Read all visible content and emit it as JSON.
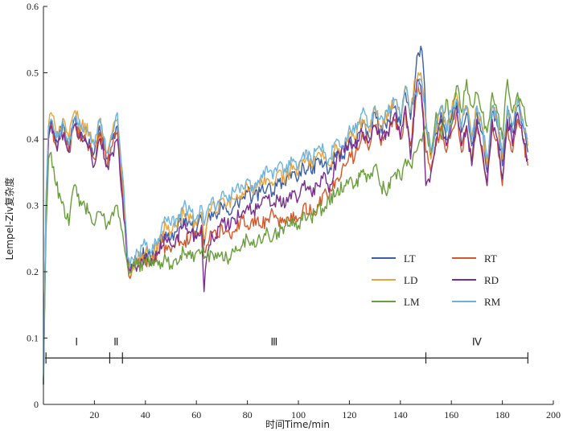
{
  "chart_data": {
    "type": "line",
    "title": "",
    "xlabel": "时间Time/min",
    "ylabel": "Lempel-Ziv复杂度",
    "xlim": [
      0,
      200
    ],
    "ylim": [
      0,
      0.6
    ],
    "xticks": [
      20,
      40,
      60,
      80,
      100,
      120,
      140,
      160,
      180,
      200
    ],
    "yticks": [
      0,
      0.1,
      0.2,
      0.3,
      0.4,
      0.5,
      0.6
    ],
    "grid": false,
    "legend_position": "right",
    "x": [
      0,
      1,
      2,
      3,
      5,
      8,
      10,
      12,
      15,
      18,
      20,
      22,
      25,
      27,
      29,
      30,
      31,
      32,
      33,
      34,
      35,
      37,
      40,
      42,
      45,
      48,
      50,
      52,
      55,
      58,
      60,
      62,
      63,
      64,
      66,
      68,
      70,
      72,
      75,
      78,
      80,
      82,
      85,
      88,
      90,
      92,
      95,
      98,
      100,
      102,
      105,
      108,
      110,
      112,
      115,
      118,
      120,
      122,
      125,
      128,
      130,
      132,
      135,
      138,
      140,
      142,
      144,
      146,
      147,
      148,
      149,
      150,
      152,
      154,
      156,
      158,
      160,
      162,
      164,
      166,
      168,
      170,
      172,
      174,
      176,
      178,
      180,
      182,
      184,
      186,
      188,
      190
    ],
    "series": [
      {
        "name": "LT",
        "color": "#3a5ea8",
        "values": [
          0.03,
          0.3,
          0.41,
          0.43,
          0.4,
          0.42,
          0.39,
          0.43,
          0.41,
          0.4,
          0.38,
          0.42,
          0.37,
          0.4,
          0.42,
          0.37,
          0.33,
          0.28,
          0.22,
          0.2,
          0.21,
          0.22,
          0.23,
          0.22,
          0.24,
          0.26,
          0.25,
          0.26,
          0.28,
          0.27,
          0.26,
          0.28,
          0.24,
          0.27,
          0.29,
          0.28,
          0.3,
          0.29,
          0.3,
          0.31,
          0.32,
          0.31,
          0.32,
          0.33,
          0.32,
          0.34,
          0.33,
          0.35,
          0.34,
          0.36,
          0.35,
          0.37,
          0.36,
          0.35,
          0.38,
          0.37,
          0.4,
          0.39,
          0.42,
          0.4,
          0.44,
          0.41,
          0.43,
          0.45,
          0.42,
          0.47,
          0.43,
          0.5,
          0.53,
          0.54,
          0.51,
          0.43,
          0.37,
          0.41,
          0.44,
          0.4,
          0.43,
          0.46,
          0.41,
          0.44,
          0.39,
          0.44,
          0.41,
          0.35,
          0.44,
          0.42,
          0.36,
          0.44,
          0.41,
          0.45,
          0.42,
          0.38
        ]
      },
      {
        "name": "RT",
        "color": "#d4572a",
        "values": [
          0.03,
          0.3,
          0.4,
          0.42,
          0.39,
          0.41,
          0.38,
          0.42,
          0.4,
          0.39,
          0.37,
          0.41,
          0.36,
          0.39,
          0.41,
          0.36,
          0.32,
          0.27,
          0.21,
          0.19,
          0.21,
          0.22,
          0.22,
          0.21,
          0.23,
          0.24,
          0.23,
          0.25,
          0.24,
          0.26,
          0.25,
          0.27,
          0.23,
          0.24,
          0.26,
          0.25,
          0.27,
          0.26,
          0.26,
          0.28,
          0.27,
          0.28,
          0.27,
          0.28,
          0.29,
          0.28,
          0.27,
          0.29,
          0.28,
          0.3,
          0.29,
          0.3,
          0.32,
          0.31,
          0.34,
          0.36,
          0.38,
          0.37,
          0.41,
          0.39,
          0.42,
          0.4,
          0.41,
          0.43,
          0.4,
          0.44,
          0.39,
          0.46,
          0.48,
          0.47,
          0.44,
          0.38,
          0.35,
          0.39,
          0.42,
          0.38,
          0.41,
          0.44,
          0.38,
          0.42,
          0.36,
          0.42,
          0.38,
          0.33,
          0.42,
          0.4,
          0.33,
          0.42,
          0.38,
          0.43,
          0.4,
          0.36
        ]
      },
      {
        "name": "LD",
        "color": "#e8a33a",
        "values": [
          0.03,
          0.31,
          0.42,
          0.44,
          0.41,
          0.43,
          0.4,
          0.44,
          0.42,
          0.41,
          0.39,
          0.43,
          0.38,
          0.41,
          0.43,
          0.38,
          0.34,
          0.28,
          0.22,
          0.2,
          0.21,
          0.22,
          0.23,
          0.22,
          0.24,
          0.27,
          0.26,
          0.27,
          0.29,
          0.28,
          0.27,
          0.29,
          0.25,
          0.27,
          0.3,
          0.29,
          0.31,
          0.3,
          0.31,
          0.32,
          0.33,
          0.32,
          0.33,
          0.34,
          0.33,
          0.35,
          0.34,
          0.36,
          0.35,
          0.37,
          0.36,
          0.38,
          0.37,
          0.36,
          0.39,
          0.38,
          0.41,
          0.4,
          0.43,
          0.41,
          0.45,
          0.42,
          0.44,
          0.46,
          0.43,
          0.48,
          0.44,
          0.49,
          0.5,
          0.5,
          0.47,
          0.42,
          0.37,
          0.41,
          0.45,
          0.41,
          0.44,
          0.47,
          0.42,
          0.45,
          0.4,
          0.45,
          0.42,
          0.36,
          0.45,
          0.43,
          0.37,
          0.45,
          0.42,
          0.46,
          0.43,
          0.39
        ]
      },
      {
        "name": "RD",
        "color": "#7b2d8e",
        "values": [
          0.03,
          0.3,
          0.4,
          0.42,
          0.39,
          0.41,
          0.38,
          0.42,
          0.4,
          0.39,
          0.36,
          0.4,
          0.36,
          0.38,
          0.4,
          0.35,
          0.31,
          0.27,
          0.21,
          0.2,
          0.21,
          0.21,
          0.22,
          0.21,
          0.23,
          0.25,
          0.24,
          0.25,
          0.27,
          0.26,
          0.25,
          0.27,
          0.17,
          0.22,
          0.26,
          0.25,
          0.28,
          0.27,
          0.28,
          0.29,
          0.3,
          0.29,
          0.3,
          0.31,
          0.3,
          0.31,
          0.3,
          0.32,
          0.31,
          0.33,
          0.32,
          0.33,
          0.35,
          0.32,
          0.37,
          0.38,
          0.4,
          0.39,
          0.41,
          0.4,
          0.42,
          0.4,
          0.41,
          0.44,
          0.4,
          0.45,
          0.37,
          0.47,
          0.49,
          0.48,
          0.43,
          0.33,
          0.35,
          0.4,
          0.43,
          0.39,
          0.42,
          0.45,
          0.39,
          0.42,
          0.36,
          0.43,
          0.39,
          0.33,
          0.43,
          0.4,
          0.34,
          0.43,
          0.39,
          0.44,
          0.4,
          0.37
        ]
      },
      {
        "name": "LM",
        "color": "#6a9e3c",
        "values": [
          0.03,
          0.26,
          0.37,
          0.38,
          0.33,
          0.3,
          0.27,
          0.33,
          0.3,
          0.29,
          0.27,
          0.29,
          0.27,
          0.29,
          0.3,
          0.28,
          0.26,
          0.23,
          0.21,
          0.2,
          0.21,
          0.21,
          0.21,
          0.22,
          0.21,
          0.22,
          0.21,
          0.22,
          0.23,
          0.22,
          0.23,
          0.23,
          0.22,
          0.22,
          0.23,
          0.22,
          0.23,
          0.22,
          0.23,
          0.24,
          0.25,
          0.24,
          0.25,
          0.26,
          0.25,
          0.26,
          0.27,
          0.28,
          0.27,
          0.29,
          0.28,
          0.3,
          0.29,
          0.31,
          0.32,
          0.33,
          0.34,
          0.33,
          0.35,
          0.34,
          0.36,
          0.33,
          0.32,
          0.35,
          0.34,
          0.37,
          0.36,
          0.38,
          0.39,
          0.4,
          0.41,
          0.42,
          0.38,
          0.44,
          0.4,
          0.46,
          0.42,
          0.48,
          0.44,
          0.49,
          0.45,
          0.47,
          0.44,
          0.41,
          0.47,
          0.44,
          0.4,
          0.49,
          0.44,
          0.47,
          0.45,
          0.42
        ]
      },
      {
        "name": "RM",
        "color": "#6cb4de",
        "values": [
          0.03,
          0.31,
          0.42,
          0.43,
          0.4,
          0.42,
          0.39,
          0.43,
          0.42,
          0.41,
          0.39,
          0.43,
          0.38,
          0.41,
          0.44,
          0.39,
          0.35,
          0.29,
          0.22,
          0.21,
          0.22,
          0.23,
          0.24,
          0.23,
          0.25,
          0.28,
          0.27,
          0.28,
          0.3,
          0.29,
          0.28,
          0.3,
          0.27,
          0.29,
          0.31,
          0.3,
          0.32,
          0.31,
          0.32,
          0.33,
          0.34,
          0.33,
          0.34,
          0.35,
          0.34,
          0.36,
          0.35,
          0.37,
          0.36,
          0.38,
          0.37,
          0.39,
          0.38,
          0.37,
          0.4,
          0.39,
          0.42,
          0.41,
          0.44,
          0.42,
          0.45,
          0.43,
          0.44,
          0.46,
          0.43,
          0.48,
          0.44,
          0.47,
          0.48,
          0.49,
          0.46,
          0.43,
          0.38,
          0.42,
          0.45,
          0.41,
          0.44,
          0.46,
          0.42,
          0.45,
          0.4,
          0.45,
          0.42,
          0.37,
          0.45,
          0.43,
          0.38,
          0.45,
          0.42,
          0.46,
          0.43,
          0.4
        ]
      }
    ],
    "phases": [
      {
        "label": "Ⅰ",
        "start": 0,
        "end": 26
      },
      {
        "label": "Ⅱ",
        "start": 26,
        "end": 31
      },
      {
        "label": "Ⅲ",
        "start": 31,
        "end": 150
      },
      {
        "label": "Ⅳ",
        "start": 150,
        "end": 190
      }
    ],
    "phase_y": 0.07
  }
}
